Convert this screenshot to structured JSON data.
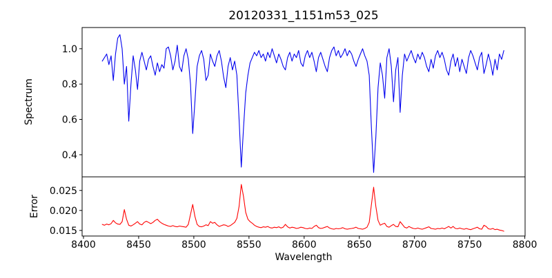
{
  "figure": {
    "title": "20120331_1151m53_025",
    "background_color": "#ffffff",
    "text_color": "#000000"
  },
  "chart_data": [
    {
      "type": "line",
      "name": "spectrum",
      "title": "20120331_1151m53_025",
      "ylabel": "Spectrum",
      "color": "#0000ee",
      "grid": false,
      "legend": "none",
      "x_start": 8417,
      "x_step": 2,
      "xlim": [
        8398.75,
        8800.25
      ],
      "ylim": [
        0.275,
        1.12
      ],
      "yticks": [
        1.0,
        0.8,
        0.6,
        0.4
      ],
      "ytick_labels": [
        "1.0",
        "0.8",
        "0.6",
        "0.4"
      ],
      "values": [
        0.93,
        0.95,
        0.97,
        0.91,
        0.96,
        0.82,
        0.97,
        1.06,
        1.08,
        1.0,
        0.8,
        0.9,
        0.59,
        0.8,
        0.96,
        0.88,
        0.77,
        0.93,
        0.98,
        0.93,
        0.88,
        0.94,
        0.96,
        0.9,
        0.85,
        0.92,
        0.87,
        0.91,
        0.89,
        1.0,
        1.01,
        0.96,
        0.88,
        0.93,
        1.02,
        0.9,
        0.87,
        0.96,
        1.0,
        0.94,
        0.8,
        0.52,
        0.7,
        0.9,
        0.96,
        0.99,
        0.94,
        0.82,
        0.85,
        0.97,
        0.93,
        0.9,
        0.96,
        0.99,
        0.93,
        0.84,
        0.78,
        0.9,
        0.95,
        0.88,
        0.93,
        0.85,
        0.6,
        0.33,
        0.55,
        0.75,
        0.85,
        0.92,
        0.95,
        0.98,
        0.96,
        0.99,
        0.95,
        0.97,
        0.93,
        0.98,
        0.95,
        1.0,
        0.96,
        0.92,
        0.97,
        0.94,
        0.9,
        0.88,
        0.95,
        0.98,
        0.93,
        0.97,
        0.95,
        0.99,
        0.92,
        0.9,
        0.96,
        0.99,
        0.95,
        0.98,
        0.93,
        0.87,
        0.95,
        0.98,
        0.94,
        0.9,
        0.87,
        0.95,
        0.99,
        1.01,
        0.96,
        0.99,
        0.95,
        0.97,
        1.0,
        0.96,
        0.99,
        0.97,
        0.93,
        0.9,
        0.94,
        0.97,
        1.0,
        0.96,
        0.93,
        0.85,
        0.55,
        0.3,
        0.5,
        0.78,
        0.92,
        0.85,
        0.72,
        0.95,
        1.0,
        0.9,
        0.7,
        0.88,
        0.95,
        0.64,
        0.85,
        0.97,
        0.93,
        0.96,
        0.99,
        0.95,
        0.92,
        0.97,
        0.94,
        0.98,
        0.95,
        0.9,
        0.87,
        0.94,
        0.89,
        0.96,
        0.99,
        0.95,
        0.98,
        0.94,
        0.88,
        0.85,
        0.93,
        0.97,
        0.9,
        0.95,
        0.87,
        0.94,
        0.9,
        0.86,
        0.95,
        0.99,
        0.96,
        0.92,
        0.88,
        0.95,
        0.98,
        0.86,
        0.91,
        0.97,
        0.92,
        0.85,
        0.94,
        0.88,
        0.97,
        0.94,
        0.99
      ]
    },
    {
      "type": "line",
      "name": "error",
      "ylabel": "Error",
      "xlabel": "Wavelength",
      "color": "#ff0000",
      "grid": false,
      "legend": "none",
      "x_start": 8417,
      "x_step": 2,
      "xlim": [
        8398.75,
        8800.25
      ],
      "ylim": [
        0.0136,
        0.0284
      ],
      "yticks": [
        0.025,
        0.02,
        0.015
      ],
      "ytick_labels": [
        "0.025",
        "0.020",
        "0.015"
      ],
      "xticks": [
        8400,
        8450,
        8500,
        8550,
        8600,
        8650,
        8700,
        8750,
        8800
      ],
      "xtick_labels": [
        "8400",
        "8450",
        "8500",
        "8550",
        "8600",
        "8650",
        "8700",
        "8750",
        "8800"
      ],
      "values": [
        0.0165,
        0.0163,
        0.0166,
        0.0164,
        0.0167,
        0.0175,
        0.0169,
        0.0166,
        0.0165,
        0.0172,
        0.0202,
        0.0178,
        0.0163,
        0.0161,
        0.0164,
        0.0168,
        0.0172,
        0.0166,
        0.0164,
        0.017,
        0.0173,
        0.017,
        0.0167,
        0.017,
        0.0175,
        0.0178,
        0.0172,
        0.0168,
        0.0165,
        0.0163,
        0.0161,
        0.016,
        0.0162,
        0.016,
        0.0159,
        0.0161,
        0.016,
        0.0159,
        0.0158,
        0.0165,
        0.019,
        0.0215,
        0.0185,
        0.0165,
        0.016,
        0.0159,
        0.0161,
        0.0164,
        0.0162,
        0.0172,
        0.0168,
        0.017,
        0.0164,
        0.016,
        0.0162,
        0.0164,
        0.0163,
        0.016,
        0.0162,
        0.0166,
        0.017,
        0.018,
        0.021,
        0.0265,
        0.0235,
        0.0195,
        0.0178,
        0.0172,
        0.0168,
        0.0163,
        0.016,
        0.0158,
        0.0157,
        0.0159,
        0.0158,
        0.016,
        0.0157,
        0.0156,
        0.0158,
        0.0157,
        0.0159,
        0.0156,
        0.0158,
        0.0165,
        0.0159,
        0.0156,
        0.0158,
        0.0157,
        0.0155,
        0.0156,
        0.0158,
        0.0157,
        0.0155,
        0.0154,
        0.0156,
        0.0155,
        0.016,
        0.0163,
        0.0157,
        0.0155,
        0.0156,
        0.0158,
        0.016,
        0.0156,
        0.0154,
        0.0153,
        0.0155,
        0.0154,
        0.0155,
        0.0157,
        0.0154,
        0.0153,
        0.0154,
        0.0155,
        0.0156,
        0.0158,
        0.0155,
        0.0154,
        0.0153,
        0.0155,
        0.0158,
        0.017,
        0.0215,
        0.0258,
        0.021,
        0.0175,
        0.0163,
        0.0166,
        0.0168,
        0.016,
        0.0158,
        0.0162,
        0.0165,
        0.016,
        0.0159,
        0.0172,
        0.0165,
        0.0158,
        0.0156,
        0.016,
        0.0157,
        0.0155,
        0.0154,
        0.0156,
        0.0154,
        0.0153,
        0.0155,
        0.0157,
        0.0159,
        0.0155,
        0.0154,
        0.0153,
        0.0155,
        0.0154,
        0.0156,
        0.0154,
        0.0157,
        0.016,
        0.0156,
        0.016,
        0.0155,
        0.0154,
        0.0156,
        0.0154,
        0.0153,
        0.0155,
        0.0153,
        0.0152,
        0.0154,
        0.0156,
        0.0158,
        0.0154,
        0.0153,
        0.0163,
        0.016,
        0.0154,
        0.0153,
        0.0155,
        0.0152,
        0.0153,
        0.0151,
        0.015,
        0.0148
      ]
    }
  ]
}
